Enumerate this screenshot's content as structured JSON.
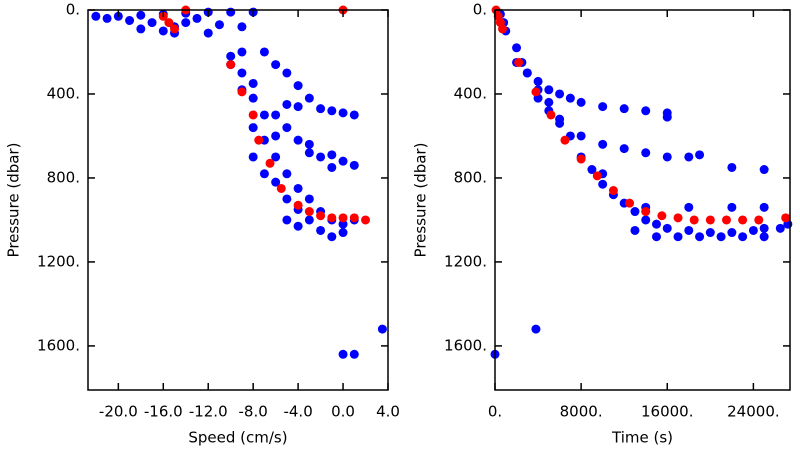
{
  "chart_data": [
    {
      "type": "scatter",
      "xlabel": "Speed (cm/s)",
      "ylabel": "Pressure (dbar)",
      "yinverted": true,
      "xlim": [
        -22.7,
        4.0
      ],
      "ylim": [
        0,
        1810
      ],
      "xticks": [
        {
          "value": -20,
          "label": "-20.0"
        },
        {
          "value": -16,
          "label": "-16.0"
        },
        {
          "value": -12,
          "label": "-12.0"
        },
        {
          "value": -8,
          "label": "-8.0"
        },
        {
          "value": -4,
          "label": "-4.0"
        },
        {
          "value": 0,
          "label": "0.0"
        },
        {
          "value": 4,
          "label": "4.0"
        }
      ],
      "yticks": [
        {
          "value": 0,
          "label": "0."
        },
        {
          "value": 400,
          "label": "400."
        },
        {
          "value": 800,
          "label": "800."
        },
        {
          "value": 1200,
          "label": "1200."
        },
        {
          "value": 1600,
          "label": "1600."
        }
      ],
      "series": [
        {
          "color": "#0000ff",
          "x": [
            -22,
            -20,
            -18,
            -16,
            -14,
            -12,
            -10,
            -8,
            -17,
            -15,
            -16,
            -18,
            -14,
            -13,
            -11,
            -19,
            -21,
            -15,
            -12,
            -9,
            -10,
            -9,
            -10,
            -9,
            -8,
            -9,
            -8,
            -7,
            -8,
            -7,
            -6,
            -5,
            -4,
            -3,
            -2,
            -1,
            0,
            1,
            -6,
            -5,
            -3,
            -2,
            -1,
            0,
            -7,
            -4,
            -8,
            -6,
            -5,
            -4,
            -7,
            -6,
            -5,
            -4,
            -3,
            -2,
            -1,
            0,
            1,
            -4,
            -5,
            -6,
            -5,
            -4,
            -3,
            -2,
            -1,
            0,
            -3,
            -1,
            1,
            0,
            1,
            3.5
          ],
          "values": [
            30,
            30,
            25,
            20,
            15,
            10,
            10,
            10,
            60,
            80,
            100,
            90,
            60,
            40,
            70,
            50,
            40,
            110,
            110,
            80,
            220,
            200,
            260,
            300,
            350,
            380,
            420,
            500,
            560,
            620,
            700,
            780,
            850,
            900,
            960,
            1000,
            1020,
            1000,
            820,
            900,
            1000,
            1050,
            1080,
            1060,
            780,
            950,
            700,
            600,
            1000,
            1030,
            200,
            260,
            300,
            360,
            420,
            470,
            480,
            490,
            500,
            460,
            450,
            500,
            560,
            620,
            680,
            700,
            690,
            720,
            640,
            750,
            740,
            1640,
            1640,
            1520
          ]
        },
        {
          "color": "#ff0000",
          "x": [
            -14,
            -16,
            -15.5,
            -15,
            -10,
            -9,
            -8,
            -7.5,
            -6.5,
            -5.5,
            -4,
            -3,
            -2,
            -1,
            0,
            1,
            2,
            0
          ],
          "values": [
            0,
            30,
            60,
            90,
            260,
            390,
            500,
            620,
            730,
            850,
            930,
            960,
            980,
            990,
            990,
            990,
            1000,
            0
          ]
        }
      ]
    },
    {
      "type": "scatter",
      "xlabel": "Time (s)",
      "ylabel": "Pressure (dbar)",
      "yinverted": true,
      "xlim": [
        0,
        27400
      ],
      "ylim": [
        0,
        1810
      ],
      "xticks": [
        {
          "value": 0,
          "label": "0."
        },
        {
          "value": 8000,
          "label": "8000."
        },
        {
          "value": 16000,
          "label": "16000."
        },
        {
          "value": 24000,
          "label": "24000."
        }
      ],
      "yticks": [
        {
          "value": 0,
          "label": "0."
        },
        {
          "value": 400,
          "label": "400."
        },
        {
          "value": 800,
          "label": "800."
        },
        {
          "value": 1200,
          "label": "1200."
        },
        {
          "value": 1600,
          "label": "1600."
        }
      ],
      "series": [
        {
          "color": "#0000ff",
          "x": [
            500,
            800,
            1000,
            2000,
            2500,
            3000,
            4000,
            5000,
            6000,
            7000,
            8000,
            9000,
            10000,
            11000,
            12000,
            13000,
            14000,
            15000,
            16000,
            18000,
            20000,
            22000,
            24000,
            25000,
            13000,
            15000,
            17000,
            19000,
            21000,
            23000,
            25000,
            14000,
            18000,
            22000,
            25000,
            2000,
            3000,
            4000,
            5000,
            6000,
            7000,
            8000,
            10000,
            12000,
            14000,
            16000,
            16000,
            4000,
            5000,
            6000,
            8000,
            10000,
            12000,
            14000,
            16000,
            18000,
            19000,
            22000,
            25000,
            10000,
            0,
            3800,
            26500,
            27200
          ],
          "values": [
            20,
            60,
            100,
            180,
            250,
            300,
            380,
            440,
            520,
            600,
            700,
            760,
            830,
            880,
            920,
            960,
            1000,
            1020,
            1040,
            1050,
            1060,
            1060,
            1050,
            1040,
            1050,
            1080,
            1080,
            1080,
            1080,
            1080,
            1080,
            940,
            940,
            940,
            940,
            250,
            300,
            340,
            380,
            400,
            420,
            440,
            460,
            470,
            480,
            490,
            510,
            420,
            480,
            540,
            600,
            640,
            660,
            680,
            700,
            700,
            690,
            750,
            760,
            780,
            1640,
            1520,
            1040,
            1020
          ]
        },
        {
          "color": "#ff0000",
          "x": [
            100,
            300,
            500,
            700,
            2200,
            3800,
            5200,
            6500,
            8000,
            9500,
            11000,
            12500,
            14000,
            15500,
            17000,
            18500,
            20000,
            21500,
            23000,
            24500,
            27000
          ],
          "values": [
            0,
            30,
            60,
            90,
            250,
            390,
            500,
            620,
            710,
            790,
            860,
            920,
            960,
            980,
            990,
            1000,
            1000,
            1000,
            1000,
            1000,
            990
          ]
        }
      ]
    }
  ]
}
